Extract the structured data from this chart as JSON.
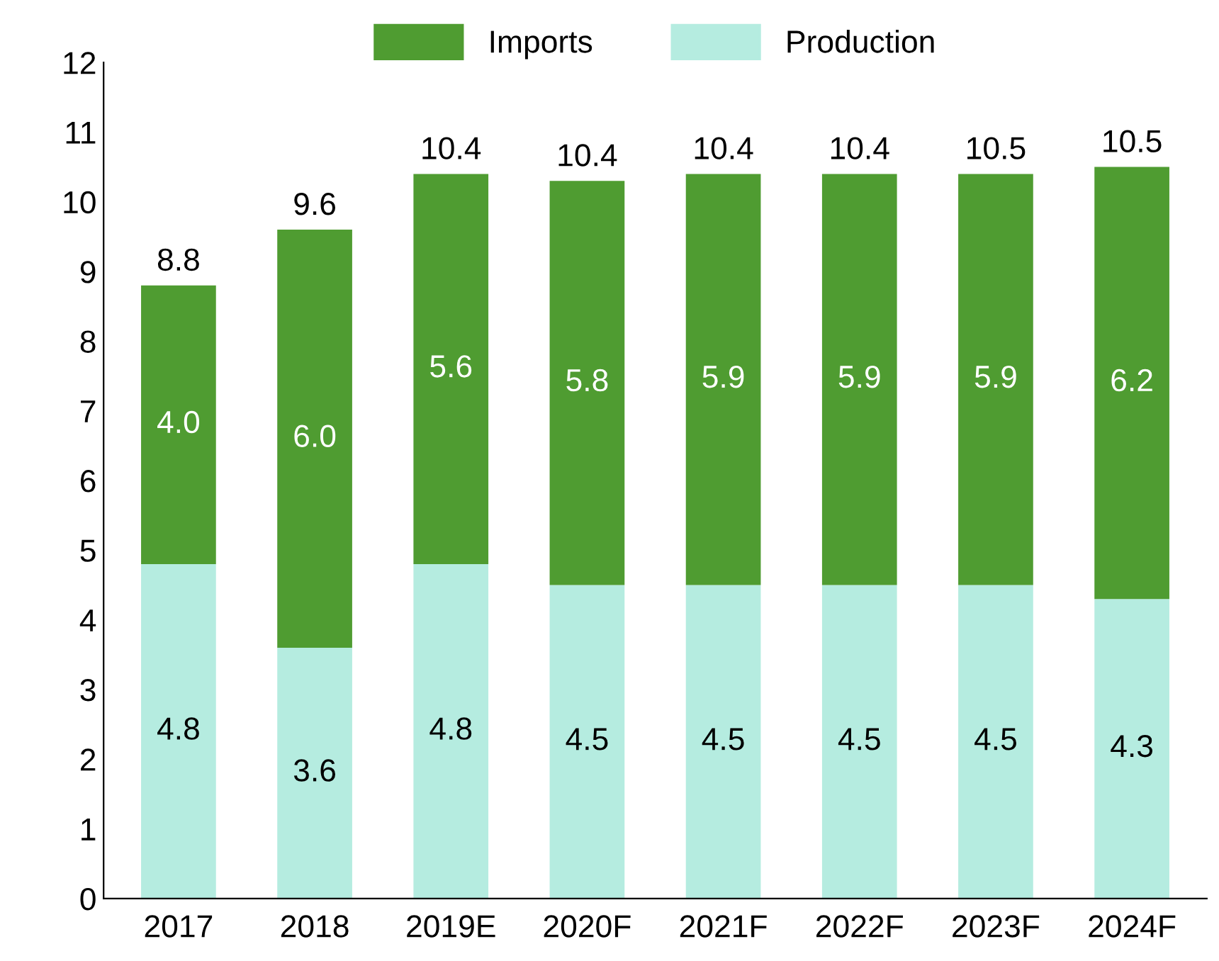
{
  "chart_data": {
    "type": "bar",
    "stacked": true,
    "categories": [
      "2017",
      "2018",
      "2019E",
      "2020F",
      "2021F",
      "2022F",
      "2023F",
      "2024F"
    ],
    "series": [
      {
        "name": "Production",
        "color": "#b5ece0",
        "values": [
          4.8,
          3.6,
          4.8,
          4.5,
          4.5,
          4.5,
          4.5,
          4.3
        ],
        "value_labels": [
          "4.8",
          "3.6",
          "4.8",
          "4.5",
          "4.5",
          "4.5",
          "4.5",
          "4.3"
        ]
      },
      {
        "name": "Imports",
        "color": "#4f9c31",
        "values": [
          4.0,
          6.0,
          5.6,
          5.8,
          5.9,
          5.9,
          5.9,
          6.2
        ],
        "value_labels": [
          "4.0",
          "6.0",
          "5.6",
          "5.8",
          "5.9",
          "5.9",
          "5.9",
          "6.2"
        ]
      }
    ],
    "totals": [
      "8.8",
      "9.6",
      "10.4",
      "10.4",
      "10.4",
      "10.4",
      "10.5",
      "10.5"
    ],
    "ylim": [
      0,
      12
    ],
    "yticks": [
      0,
      1,
      2,
      3,
      4,
      5,
      6,
      7,
      8,
      9,
      10,
      11,
      12
    ],
    "grid": false,
    "legend": "top"
  }
}
